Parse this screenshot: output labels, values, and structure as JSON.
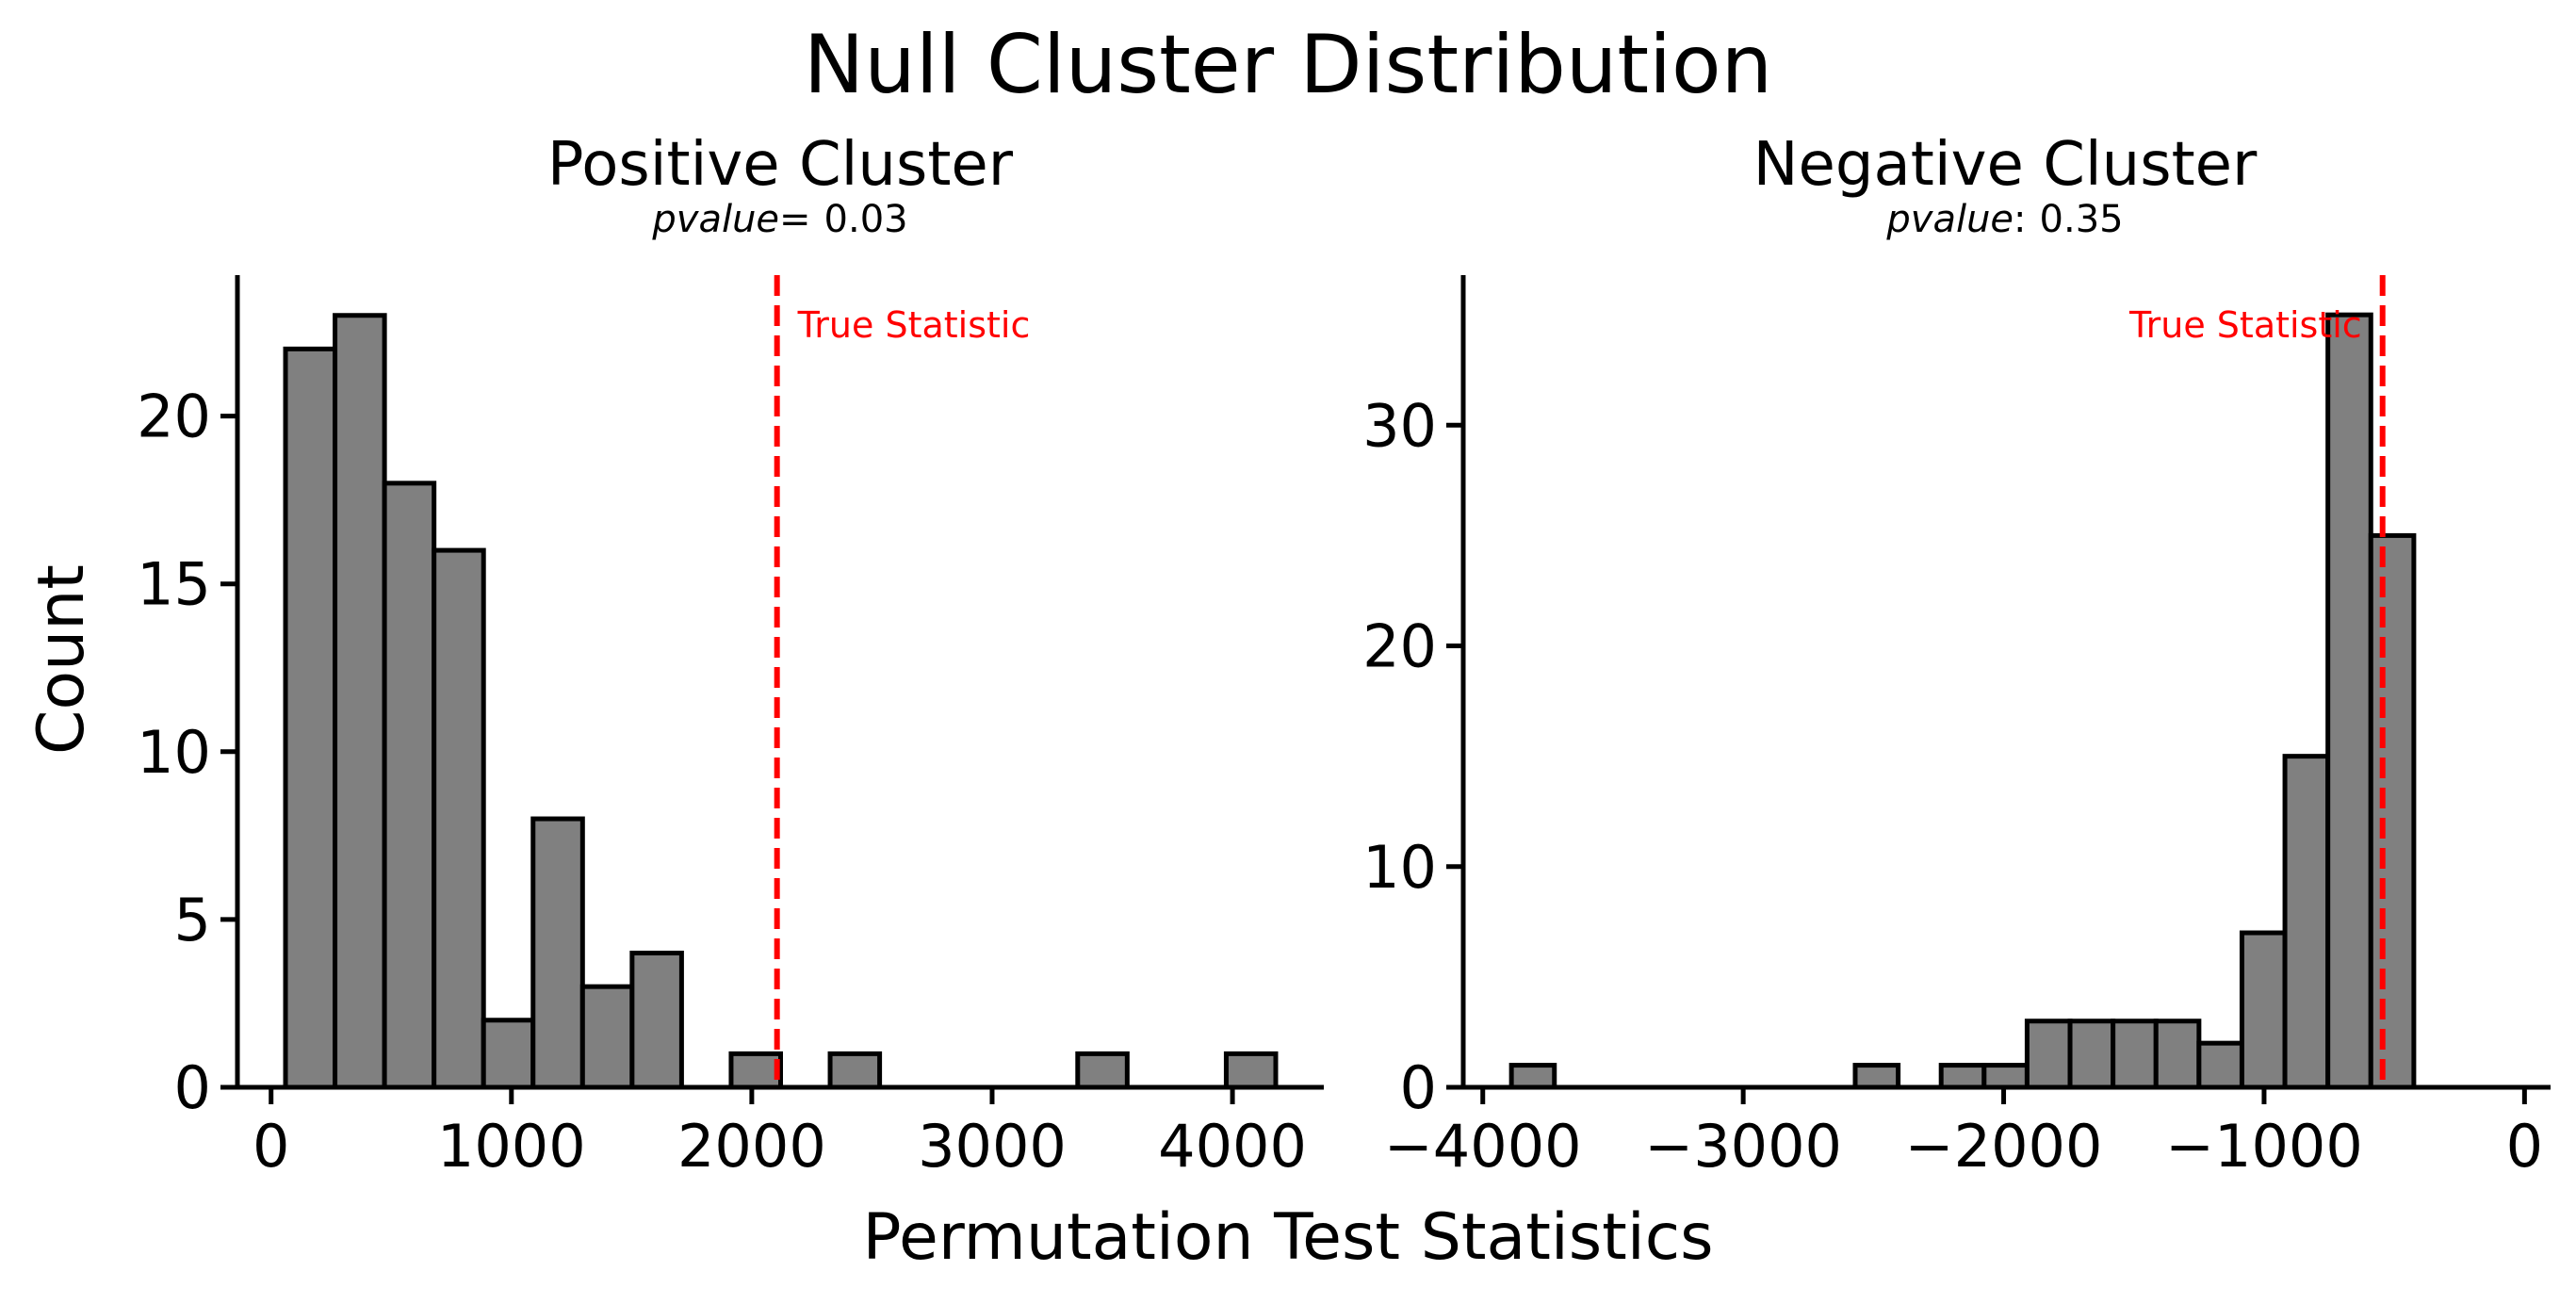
{
  "figure": {
    "title": "Null Cluster Distribution",
    "xlabel": "Permutation Test Statistics",
    "ylabel": "Count"
  },
  "colors": {
    "bar": "#808080",
    "edge": "#000000",
    "line": "#ff0000"
  },
  "chart_data": [
    {
      "type": "bar",
      "title": "Positive Cluster",
      "pvalue_label": "pvalue",
      "pvalue_sep": "=",
      "pvalue": "0.03",
      "xlim": [
        -140,
        4380
      ],
      "ylim": [
        0,
        24.2
      ],
      "xticks": [
        0,
        1000,
        2000,
        3000,
        4000
      ],
      "xtick_labels": [
        "0",
        "1000",
        "2000",
        "3000",
        "4000"
      ],
      "yticks": [
        0,
        5,
        10,
        15,
        20
      ],
      "ytick_labels": [
        "0",
        "5",
        "10",
        "15",
        "20"
      ],
      "bin_edges": [
        60,
        266,
        472,
        678,
        884,
        1090,
        1296,
        1502,
        1708,
        1914,
        2120,
        2326,
        2532,
        2738,
        2944,
        3150,
        3356,
        3562,
        3768,
        3974,
        4180
      ],
      "counts": [
        22,
        23,
        18,
        16,
        2,
        8,
        3,
        4,
        0,
        1,
        0,
        1,
        0,
        0,
        0,
        0,
        1,
        0,
        0,
        1
      ],
      "true_statistic": 2105,
      "true_statistic_label": "True Statistic",
      "label_side": "right"
    },
    {
      "type": "bar",
      "title": "Negative Cluster",
      "pvalue_label": "pvalue",
      "pvalue_sep": ":",
      "pvalue": "0.35",
      "xlim": [
        -4075,
        100
      ],
      "ylim": [
        0,
        36.8
      ],
      "xticks": [
        -4000,
        -3000,
        -2000,
        -1000,
        0
      ],
      "xtick_labels": [
        "−4000",
        "−3000",
        "−2000",
        "−1000",
        "0"
      ],
      "yticks": [
        0,
        10,
        20,
        30
      ],
      "ytick_labels": [
        "0",
        "10",
        "20",
        "30"
      ],
      "bin_edges": [
        -3890,
        -3725,
        -3560,
        -3395,
        -3230,
        -3065,
        -2900,
        -2735,
        -2570,
        -2405,
        -2240,
        -2075,
        -1910,
        -1745,
        -1580,
        -1415,
        -1250,
        -1085,
        -920,
        -755,
        -590,
        -425,
        -260,
        -95
      ],
      "counts": [
        1,
        0,
        0,
        0,
        0,
        0,
        0,
        0,
        1,
        0,
        1,
        1,
        3,
        3,
        3,
        3,
        2,
        7,
        15,
        35,
        25,
        0,
        0
      ],
      "true_statistic": -545,
      "true_statistic_label": "True Statistic",
      "label_side": "left"
    }
  ]
}
